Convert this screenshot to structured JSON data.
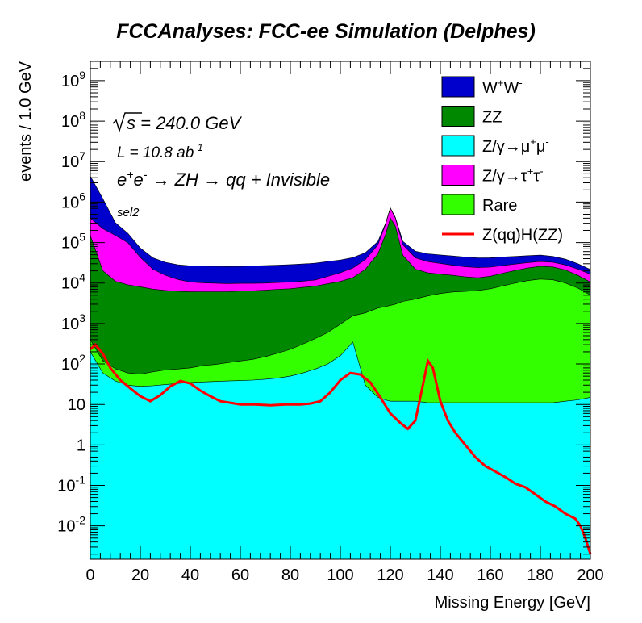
{
  "chart_data": {
    "type": "area",
    "title": "FCCAnalyses: FCC-ee Simulation (Delphes)",
    "xlabel": "Missing Energy [GeV]",
    "ylabel": "events / 1.0 GeV",
    "xlim": [
      0,
      200
    ],
    "ylim": [
      0.0015,
      3000000000
    ],
    "yscale": "log",
    "stacked": true,
    "x_ticks": [
      "0",
      "20",
      "40",
      "60",
      "80",
      "100",
      "120",
      "140",
      "160",
      "180",
      "200"
    ],
    "y_ticks": [
      {
        "base": "10",
        "exp": "-2",
        "value": 0.01
      },
      {
        "base": "10",
        "exp": "-1",
        "value": 0.1
      },
      {
        "base": "1",
        "exp": "",
        "value": 1
      },
      {
        "base": "10",
        "exp": "",
        "value": 10
      },
      {
        "base": "10",
        "exp": "2",
        "value": 100
      },
      {
        "base": "10",
        "exp": "3",
        "value": 1000
      },
      {
        "base": "10",
        "exp": "4",
        "value": 10000
      },
      {
        "base": "10",
        "exp": "5",
        "value": 100000
      },
      {
        "base": "10",
        "exp": "6",
        "value": 1000000
      },
      {
        "base": "10",
        "exp": "7",
        "value": 10000000
      },
      {
        "base": "10",
        "exp": "8",
        "value": 100000000
      },
      {
        "base": "10",
        "exp": "9",
        "value": 1000000000
      }
    ],
    "annotations": {
      "sqrt_s": "s = 240.0 GeV",
      "lumi_text": "L = 10.8 ab",
      "lumi_exp": "-1",
      "process": "e+e- → ZH → qq + Invisible",
      "selection": "sel2"
    },
    "legend_position": "top-right",
    "x": [
      0,
      5,
      10,
      15,
      20,
      25,
      30,
      35,
      40,
      45,
      50,
      55,
      60,
      65,
      70,
      75,
      80,
      85,
      90,
      95,
      100,
      105,
      110,
      115,
      118,
      120,
      122,
      125,
      130,
      135,
      140,
      145,
      150,
      155,
      160,
      165,
      170,
      175,
      180,
      185,
      190,
      195,
      200
    ],
    "series": [
      {
        "name": "Z/γ→μ+μ-",
        "color": "#00ffff",
        "values": [
          200,
          60,
          38,
          30,
          28,
          29,
          31,
          33,
          35,
          36,
          37,
          38,
          39,
          40,
          42,
          45,
          50,
          60,
          75,
          100,
          160,
          350,
          30,
          15,
          13,
          12,
          12,
          12,
          12,
          11,
          11,
          11,
          11,
          11,
          11,
          11,
          11,
          11,
          11,
          11,
          12,
          13,
          15
        ]
      },
      {
        "name": "Rare",
        "color": "#33ff00",
        "values": [
          200,
          60,
          38,
          30,
          28,
          35,
          40,
          42,
          45,
          55,
          60,
          70,
          80,
          90,
          110,
          140,
          180,
          250,
          350,
          500,
          800,
          1200,
          1800,
          2400,
          2600,
          2800,
          3000,
          3500,
          4000,
          4800,
          5500,
          6000,
          6200,
          6500,
          7200,
          8500,
          10000,
          11500,
          12500,
          12000,
          10000,
          7500,
          5000
        ]
      },
      {
        "name": "ZZ",
        "color": "#008800",
        "values": [
          150000,
          20000,
          11000,
          9000,
          8000,
          7000,
          6500,
          6200,
          6000,
          6000,
          6000,
          6000,
          6200,
          6300,
          6500,
          6800,
          7000,
          7500,
          8000,
          9000,
          10000,
          12000,
          20000,
          50000,
          150000,
          400000,
          250000,
          45000,
          18000,
          13000,
          11000,
          9500,
          8000,
          7000,
          7500,
          9000,
          10500,
          12000,
          13500,
          13000,
          11000,
          8000,
          5500
        ]
      },
      {
        "name": "Z/γ→τ+τ-",
        "color": "#ff00ff",
        "values": [
          250000,
          200000,
          140000,
          90000,
          35000,
          15000,
          9000,
          6000,
          4500,
          4000,
          3800,
          3600,
          3500,
          3400,
          3300,
          3300,
          3300,
          3300,
          3500,
          5000,
          7000,
          10000,
          16000,
          35000,
          120000,
          300000,
          150000,
          40000,
          20000,
          16000,
          14000,
          12000,
          11000,
          10500,
          10000,
          9500,
          9000,
          8500,
          8000,
          7500,
          7000,
          6500,
          6000
        ]
      },
      {
        "name": "W+W-",
        "color": "#0000cc",
        "values": [
          4000000,
          1000000,
          160000,
          70000,
          30000,
          20000,
          17000,
          16000,
          16000,
          16000,
          16000,
          16000,
          16000,
          16500,
          17000,
          17500,
          18000,
          18500,
          19000,
          19500,
          19000,
          19000,
          18500,
          18000,
          18000,
          18000,
          18000,
          18500,
          19000,
          19000,
          19000,
          19000,
          18500,
          18000,
          17500,
          17000,
          16000,
          15500,
          15000,
          13000,
          11000,
          8000,
          5000
        ]
      }
    ],
    "signal": {
      "name": "Z(qq)H(ZZ)",
      "color": "#ff0000",
      "x": [
        0,
        2,
        5,
        8,
        12,
        16,
        20,
        24,
        28,
        32,
        36,
        40,
        44,
        48,
        52,
        56,
        60,
        66,
        72,
        78,
        84,
        88,
        92,
        96,
        100,
        104,
        108,
        112,
        116,
        120,
        124,
        127,
        130,
        133,
        135,
        137,
        140,
        143,
        146,
        150,
        154,
        158,
        162,
        166,
        170,
        174,
        178,
        182,
        186,
        190,
        194,
        196,
        198,
        200
      ],
      "values": [
        230,
        300,
        180,
        80,
        40,
        25,
        16,
        12,
        17,
        28,
        38,
        33,
        22,
        16,
        12,
        11,
        10,
        10,
        9.5,
        10,
        10,
        10.5,
        12,
        20,
        40,
        60,
        55,
        35,
        15,
        6,
        3.5,
        2.5,
        4,
        30,
        120,
        80,
        12,
        4,
        2,
        1,
        0.5,
        0.3,
        0.22,
        0.16,
        0.11,
        0.09,
        0.06,
        0.04,
        0.03,
        0.02,
        0.015,
        0.01,
        0.005,
        0.002
      ]
    },
    "legend": [
      {
        "label": "W+W-",
        "color": "#0000cc",
        "kind": "box",
        "base": "W",
        "sup": "+",
        "base2": "W",
        "sup2": "-"
      },
      {
        "label": "ZZ",
        "color": "#008800",
        "kind": "box",
        "base": "ZZ"
      },
      {
        "label": "Z/γ→μ+μ-",
        "color": "#00ffff",
        "kind": "box",
        "base": "Z/γ→μ",
        "sup": "+",
        "base2": "μ",
        "sup2": "-"
      },
      {
        "label": "Z/γ→τ+τ-",
        "color": "#ff00ff",
        "kind": "box",
        "base": "Z/γ→τ",
        "sup": "+",
        "base2": "τ",
        "sup2": "-"
      },
      {
        "label": "Rare",
        "color": "#33ff00",
        "kind": "box",
        "base": "Rare"
      },
      {
        "label": "Z(qq)H(ZZ)",
        "color": "#ff0000",
        "kind": "line",
        "base": "Z(qq)H(ZZ)"
      }
    ]
  }
}
